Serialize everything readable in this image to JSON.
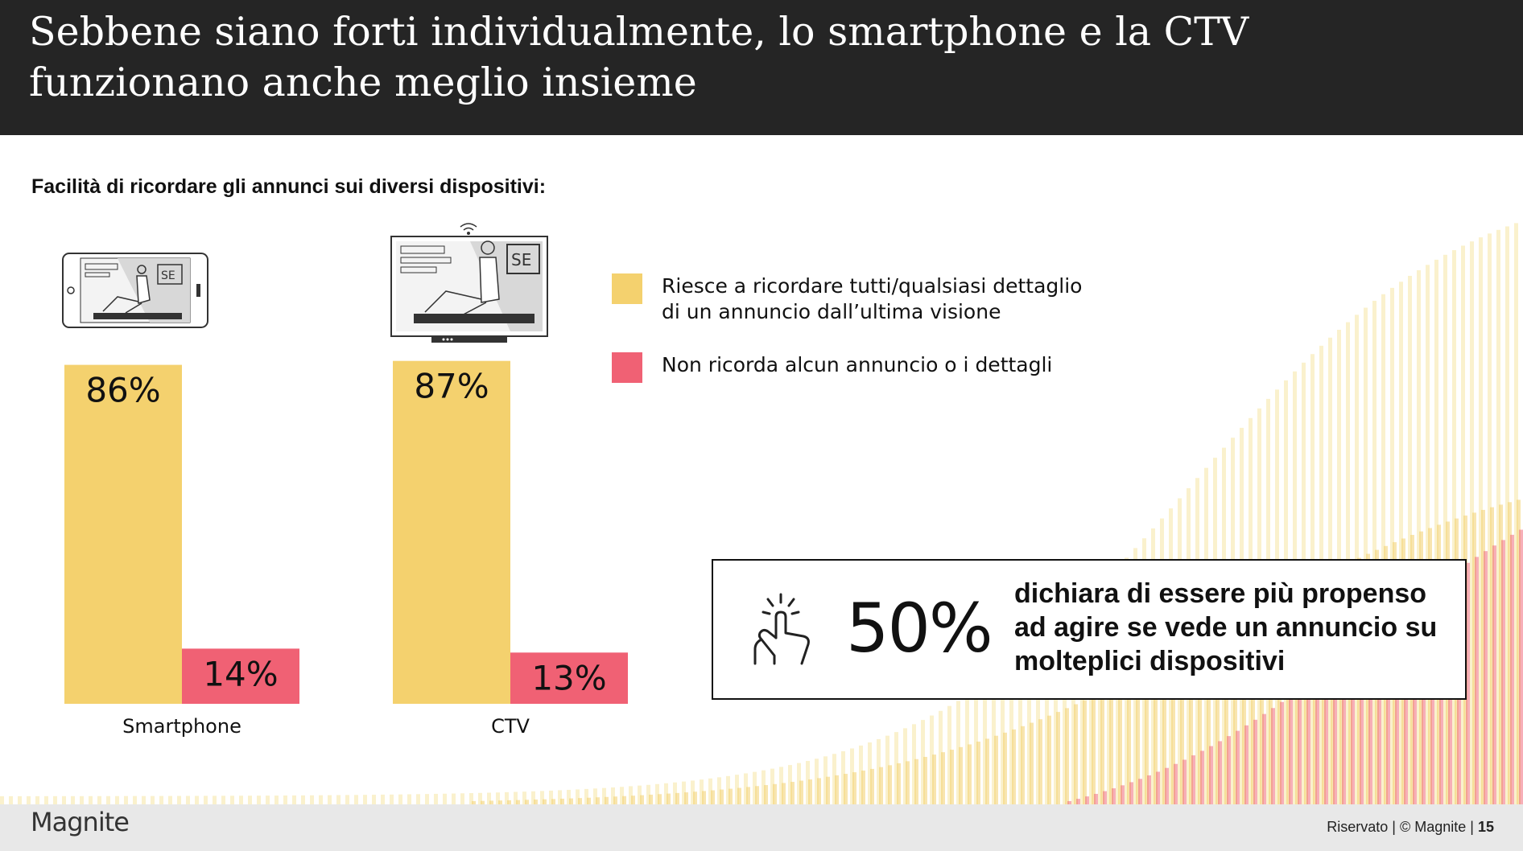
{
  "title": "Sebbene siano forti individualmente, lo smartphone e la CTV funzionano anche meglio insieme",
  "colors": {
    "header_bg": "#252525",
    "recall": "#F4D16E",
    "no_recall": "#F06174"
  },
  "chart_data": {
    "type": "bar",
    "title": "Facilità di ricordare gli annunci sui diversi dispositivi:",
    "categories": [
      "Smartphone",
      "CTV"
    ],
    "series": [
      {
        "name": "Riesce a ricordare tutti/qualsiasi dettaglio di un annuncio dall’ultima visione",
        "values": [
          86,
          87
        ],
        "labels": [
          "86%",
          "87%"
        ],
        "color": "#F4D16E"
      },
      {
        "name": "Non ricorda alcun annuncio o i dettagli",
        "values": [
          14,
          13
        ],
        "labels": [
          "14%",
          "13%"
        ],
        "color": "#F06174"
      }
    ],
    "ylim": [
      0,
      100
    ],
    "grid": false,
    "legend_position": "right"
  },
  "legend": {
    "recall_line1": "Riesce a ricordare tutti/qualsiasi dettaglio",
    "recall_line2": "di un annuncio dall’ultima visione",
    "no_recall": "Non ricorda alcun annuncio o i dettagli"
  },
  "callout": {
    "value": "50%",
    "text": "dichiara di essere più propenso ad agire se vede un annuncio su molteplici dispositivi",
    "icon": "tap-gesture-icon"
  },
  "icons": {
    "smartphone": "smartphone-icon",
    "ctv": "ctv-icon"
  },
  "footer": {
    "logo": "Magnite",
    "text_prefix": "Riservato | © Magnite | ",
    "page": "15"
  }
}
